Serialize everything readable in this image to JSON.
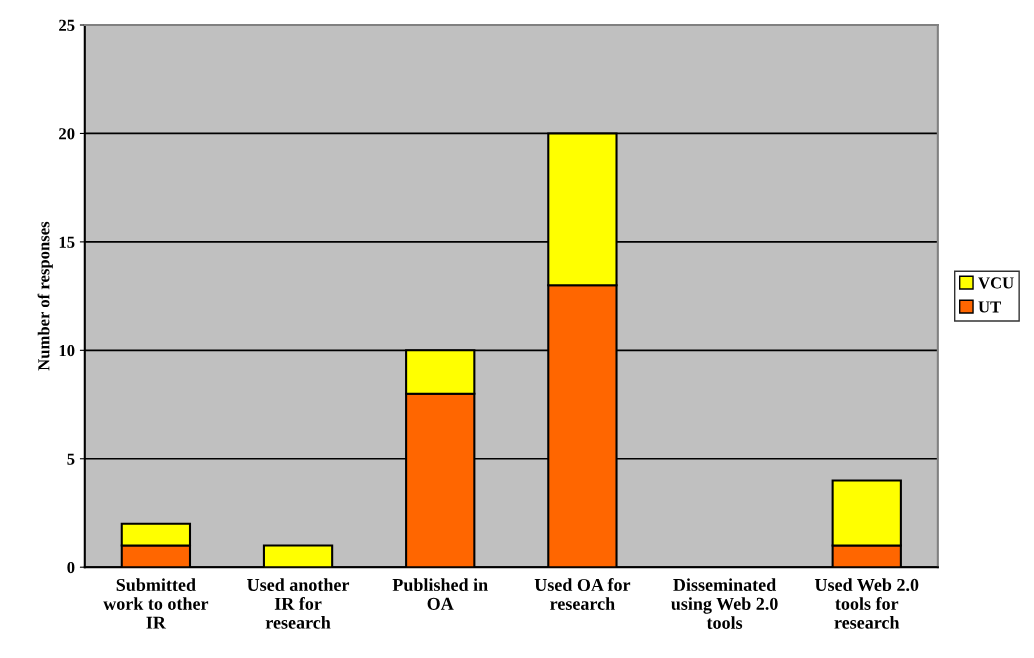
{
  "chart_data": {
    "type": "bar",
    "stacked": true,
    "ylabel": "Number of responses",
    "categories": [
      "Submitted work to other IR",
      "Used another IR for research",
      "Published in OA",
      "Used OA for research",
      "Disseminated using Web 2.0 tools",
      "Used Web 2.0 tools for research"
    ],
    "series": [
      {
        "name": "UT",
        "color": "#ff6600",
        "values": [
          1,
          0,
          8,
          13,
          0,
          1
        ]
      },
      {
        "name": "VCU",
        "color": "#ffff00",
        "values": [
          1,
          1,
          2,
          7,
          0,
          3
        ]
      }
    ],
    "ylim": [
      0,
      25
    ],
    "yticks": [
      0,
      5,
      10,
      15,
      20,
      25
    ],
    "grid": "y",
    "legend": "right"
  }
}
